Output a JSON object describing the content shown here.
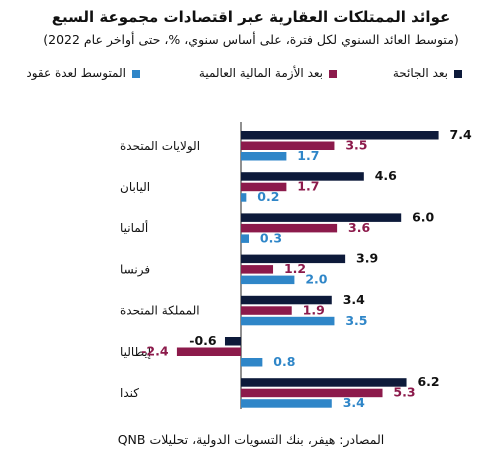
{
  "title": "عوائد الممتلكات العقارية عبر اقتصادات مجموعة السبع",
  "subtitle": "(متوسط العائد السنوي لكل فترة، على أساس سنوي، %، حتى أواخر عام 2022)",
  "source": "المصادر: هيفر، بنك التسويات الدولية، تحليلات QNB",
  "colors": {
    "series0": "#0d1a3a",
    "series1": "#8c1a4b",
    "series2": "#2f86c8"
  },
  "chart_data": {
    "type": "bar",
    "orientation": "horizontal",
    "categories": [
      "الولايات المتحدة",
      "اليابان",
      "ألمانيا",
      "فرنسا",
      "المملكة المتحدة",
      "إيطاليا",
      "كندا"
    ],
    "series": [
      {
        "name": "بعد الجائحة",
        "values": [
          7.4,
          4.6,
          6.0,
          3.9,
          3.4,
          -0.6,
          6.2
        ]
      },
      {
        "name": "بعد الأزمة المالية العالمية",
        "values": [
          3.5,
          1.7,
          3.6,
          1.2,
          1.9,
          -2.4,
          5.3
        ]
      },
      {
        "name": "المتوسط لعدة عقود",
        "values": [
          1.7,
          0.2,
          0.3,
          2.0,
          3.5,
          0.8,
          3.4
        ]
      }
    ],
    "value_labels": [
      [
        "7.4",
        "4.6",
        "6.0",
        "3.9",
        "3.4",
        "-0.6",
        "6.2"
      ],
      [
        "3.5",
        "1.7",
        "3.6",
        "1.2",
        "1.9",
        "-2.4",
        "5.3"
      ],
      [
        "1.7",
        "0.2",
        "0.3",
        "2.0",
        "3.5",
        "0.8",
        "3.4"
      ]
    ],
    "legend_position": "top",
    "grid": false
  }
}
